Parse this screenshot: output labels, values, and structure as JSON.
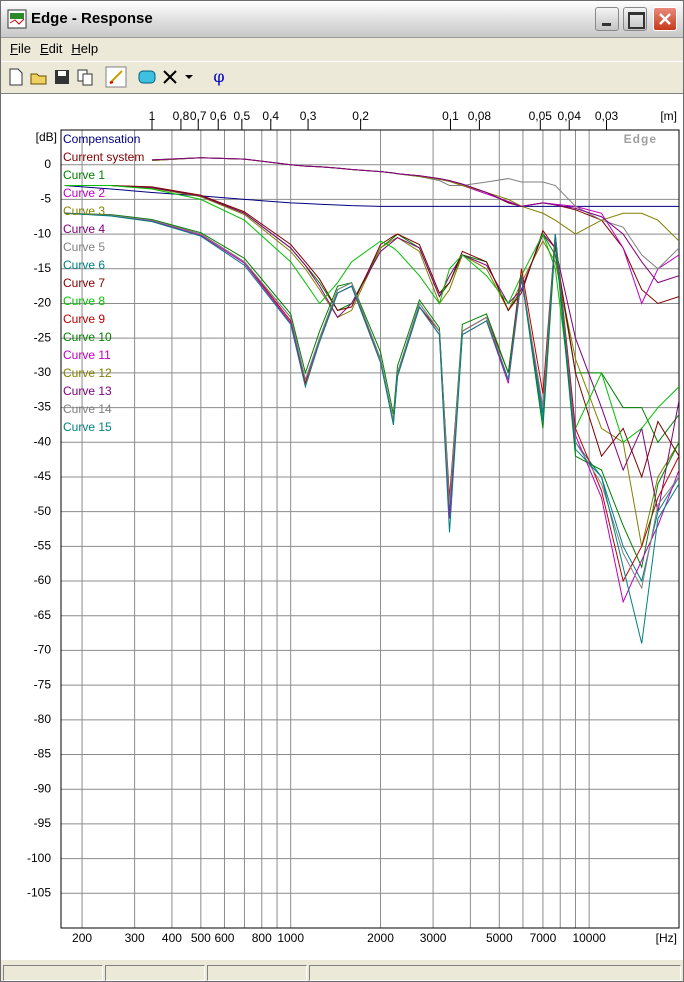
{
  "window": {
    "title": "Edge - Response"
  },
  "menu": [
    "File",
    "Edit",
    "Help"
  ],
  "toolbar": {
    "phase_button": "φ"
  },
  "chart_data": {
    "type": "line",
    "watermark": "Edge",
    "x_label": "[Hz]",
    "y_label": "[dB]",
    "x2_label": "[m]",
    "xscale": "log",
    "x2scale": "log",
    "grid": true,
    "legend": "top-left",
    "xlim": [
      170,
      20000
    ],
    "xticks": [
      200,
      300,
      400,
      500,
      600,
      800,
      1000,
      2000,
      3000,
      5000,
      7000,
      10000
    ],
    "x_minor_gridlines": [
      700,
      900,
      4000,
      6000,
      8000,
      9000
    ],
    "x2lim": [
      2.018,
      0.01715
    ],
    "x2ticks": [
      1,
      {
        "value": 0.8,
        "label": "0,8"
      },
      {
        "value": 0.7,
        "label": "0,7"
      },
      {
        "value": 0.6,
        "label": "0,6"
      },
      {
        "value": 0.5,
        "label": "0,5"
      },
      {
        "value": 0.4,
        "label": "0,4"
      },
      {
        "value": 0.3,
        "label": "0,3"
      },
      {
        "value": 0.2,
        "label": "0,2"
      },
      {
        "value": 0.1,
        "label": "0,1"
      },
      {
        "value": 0.08,
        "label": "0,08"
      },
      {
        "value": 0.05,
        "label": "0,05"
      },
      {
        "value": 0.04,
        "label": "0,04"
      },
      {
        "value": 0.03,
        "label": "0,03"
      }
    ],
    "ylim": [
      -110,
      5
    ],
    "yticks": [
      0,
      -5,
      -10,
      -15,
      -20,
      -25,
      -30,
      -35,
      -40,
      -45,
      -50,
      -55,
      -60,
      -65,
      -70,
      -75,
      -80,
      -85,
      -90,
      -95,
      -100,
      -105
    ],
    "x": [
      175,
      250,
      343,
      500,
      700,
      1000,
      1120,
      1250,
      1436,
      1600,
      2000,
      2209,
      2280,
      2700,
      3150,
      3405,
      3760,
      4530,
      5360,
      5930,
      7000,
      7700,
      9000,
      11000,
      13000,
      15000,
      17000,
      20000
    ],
    "series": [
      {
        "name": "Compensation",
        "color": "#000080",
        "values": [
          -3,
          -3.5,
          -4,
          -4.5,
          -5,
          -5.5,
          -5.6,
          -5.7,
          -5.8,
          -5.9,
          -6,
          -6,
          -6,
          -6,
          -6,
          -6,
          -6,
          -6,
          -6,
          -6,
          -6,
          -6,
          -6,
          -6,
          -6,
          -6,
          -6,
          -6
        ]
      },
      {
        "name": "Current system",
        "color": "#800000",
        "values": [
          null,
          null,
          0.7,
          1,
          0.8,
          0,
          -0.2,
          -0.3,
          -0.5,
          -0.7,
          -1,
          -1.2,
          -1.3,
          -1.6,
          -2,
          -2.3,
          -2.8,
          -4,
          -5.5,
          -6,
          -5.5,
          -5.8,
          -6.5,
          -8,
          -12,
          -18,
          -20,
          -19
        ]
      },
      {
        "name": "Curve 1",
        "color": "#008000",
        "values": [
          -3,
          -3,
          -3.3,
          -4.5,
          -7,
          -12,
          -14.5,
          -17,
          -21,
          -20,
          -12,
          -10.5,
          -10,
          -12,
          -19,
          -17,
          -13,
          -14,
          -21,
          -18,
          -10,
          -13,
          -30,
          -30,
          -35,
          -35,
          -40,
          -36
        ]
      },
      {
        "name": "Curve 2",
        "color": "#c000c0",
        "values": [
          null,
          null,
          0.6,
          1,
          0.8,
          0,
          -0.2,
          -0.3,
          -0.5,
          -0.7,
          -1,
          -1.2,
          -1.3,
          -1.7,
          -2.1,
          -2.4,
          -3,
          -4.2,
          -5.3,
          -6,
          -5.5,
          -5.7,
          -6,
          -7,
          -12,
          -20,
          -15,
          -13
        ]
      },
      {
        "name": "Curve 3",
        "color": "#808000",
        "values": [
          -3,
          -3,
          -3.4,
          -4.6,
          -7.2,
          -12.5,
          -15,
          -18,
          -22,
          -21,
          -12,
          -10.8,
          -10.5,
          -12.5,
          -20,
          -18,
          -13,
          -15,
          -21,
          -17,
          -11,
          -14,
          -28,
          -38,
          -40,
          -55,
          -45,
          -40
        ]
      },
      {
        "name": "Curve 4",
        "color": "#800080",
        "values": [
          -3,
          -3,
          -3.3,
          -4.5,
          -7,
          -12,
          -14.5,
          -17.5,
          -22,
          -20,
          -12.5,
          -11,
          -10.5,
          -12,
          -19,
          -16,
          -13,
          -14.5,
          -20,
          -18,
          -10,
          -12,
          -25,
          -35,
          -44,
          -38,
          -50,
          -34
        ]
      },
      {
        "name": "Curve 5",
        "color": "#808080",
        "values": [
          null,
          null,
          0.6,
          1,
          0.8,
          0,
          -0.2,
          -0.3,
          -0.5,
          -0.7,
          -1,
          -1.2,
          -1.3,
          -1.7,
          -2.3,
          -3,
          -3,
          -2.5,
          -2,
          -2.5,
          -2.5,
          -3,
          -6,
          -8,
          -9,
          -13,
          -15,
          -12
        ]
      },
      {
        "name": "Curve 6",
        "color": "#008080",
        "values": [
          -7,
          -7.3,
          -8,
          -10,
          -14,
          -22,
          -31,
          -25,
          -18,
          -17,
          -28,
          -37,
          -30,
          -20,
          -24,
          -50,
          -24,
          -22,
          -31,
          -16,
          -36,
          -10,
          -40,
          -45,
          -55,
          -60,
          -50,
          -45
        ]
      },
      {
        "name": "Curve 7",
        "color": "#800000",
        "values": [
          -3,
          -3,
          -3.2,
          -4.4,
          -6.8,
          -11.5,
          -14,
          -16.5,
          -21,
          -20.5,
          -11.5,
          -10.3,
          -10,
          -11.5,
          -18.5,
          -17,
          -12.5,
          -14,
          -21,
          -18.5,
          -9.5,
          -12,
          -30,
          -42,
          -38,
          -45,
          -37,
          -42
        ]
      },
      {
        "name": "Curve 8",
        "color": "#00c000",
        "values": [
          -3,
          -3,
          -3.5,
          -5,
          -8,
          -14,
          -17,
          -20,
          -17,
          -14,
          -11,
          -12,
          -12.5,
          -16,
          -20,
          -15,
          -13,
          -16,
          -20,
          -16,
          -10,
          -15,
          -38,
          -30,
          -40,
          -38,
          -35,
          -32
        ]
      },
      {
        "name": "Curve 9",
        "color": "#c00000",
        "values": [
          -7,
          -7.3,
          -8,
          -10,
          -14,
          -22.5,
          -31.5,
          -25,
          -18.5,
          -17.5,
          -28,
          -37,
          -30,
          -20.5,
          -24,
          -48,
          -24,
          -22,
          -30,
          -15,
          -33,
          -10,
          -38,
          -47,
          -60,
          -55,
          -48,
          -42
        ]
      },
      {
        "name": "Curve 10",
        "color": "#008000",
        "values": [
          -7,
          -7.2,
          -7.9,
          -9.8,
          -13.5,
          -21.5,
          -30,
          -24,
          -17.5,
          -17,
          -27,
          -36,
          -29,
          -19.5,
          -23.5,
          -49,
          -23,
          -21.5,
          -30,
          -16,
          -38,
          -11,
          -42,
          -44,
          -52,
          -58,
          -46,
          -40
        ]
      },
      {
        "name": "Curve 11",
        "color": "#c000c0",
        "values": [
          -7,
          -7.3,
          -8.1,
          -10.2,
          -14.2,
          -22.8,
          -31,
          -25.5,
          -18.5,
          -17.5,
          -28.5,
          -37,
          -30.5,
          -20.5,
          -24.5,
          -51,
          -24.5,
          -22.5,
          -31.5,
          -16.5,
          -35,
          -10.5,
          -39,
          -48,
          -63,
          -57,
          -52,
          -44
        ]
      },
      {
        "name": "Curve 12",
        "color": "#808000",
        "values": [
          null,
          null,
          0.6,
          1,
          0.8,
          0,
          -0.2,
          -0.3,
          -0.5,
          -0.7,
          -1,
          -1.2,
          -1.3,
          -1.7,
          -2.1,
          -2.4,
          -3,
          -4,
          -5,
          -6,
          -7,
          -8,
          -10,
          -8,
          -7,
          -7,
          -8,
          -11
        ]
      },
      {
        "name": "Curve 13",
        "color": "#800080",
        "values": [
          null,
          null,
          0.7,
          1,
          0.8,
          0,
          -0.2,
          -0.3,
          -0.5,
          -0.7,
          -1,
          -1.2,
          -1.3,
          -1.6,
          -2,
          -2.3,
          -2.8,
          -4,
          -5.4,
          -6,
          -5.5,
          -5.8,
          -6.3,
          -7.5,
          -10,
          -14,
          -17,
          -16
        ]
      },
      {
        "name": "Curve 14",
        "color": "#808080",
        "values": [
          -7,
          -7.3,
          -8,
          -10,
          -14,
          -22,
          -31,
          -25,
          -18,
          -17,
          -28,
          -37,
          -30,
          -20,
          -24,
          -49,
          -24,
          -22,
          -31,
          -16,
          -35,
          -10,
          -40,
          -46,
          -56,
          -61,
          -49,
          -45
        ]
      },
      {
        "name": "Curve 15",
        "color": "#008080",
        "values": [
          -7,
          -7.4,
          -8.2,
          -10.3,
          -14.5,
          -23,
          -32,
          -25.5,
          -18.5,
          -17.5,
          -28.5,
          -37.5,
          -30.5,
          -20.5,
          -24.5,
          -53,
          -24.5,
          -22.5,
          -31,
          -16,
          -37,
          -10,
          -41,
          -45,
          -58,
          -69,
          -51,
          -46
        ]
      }
    ]
  }
}
